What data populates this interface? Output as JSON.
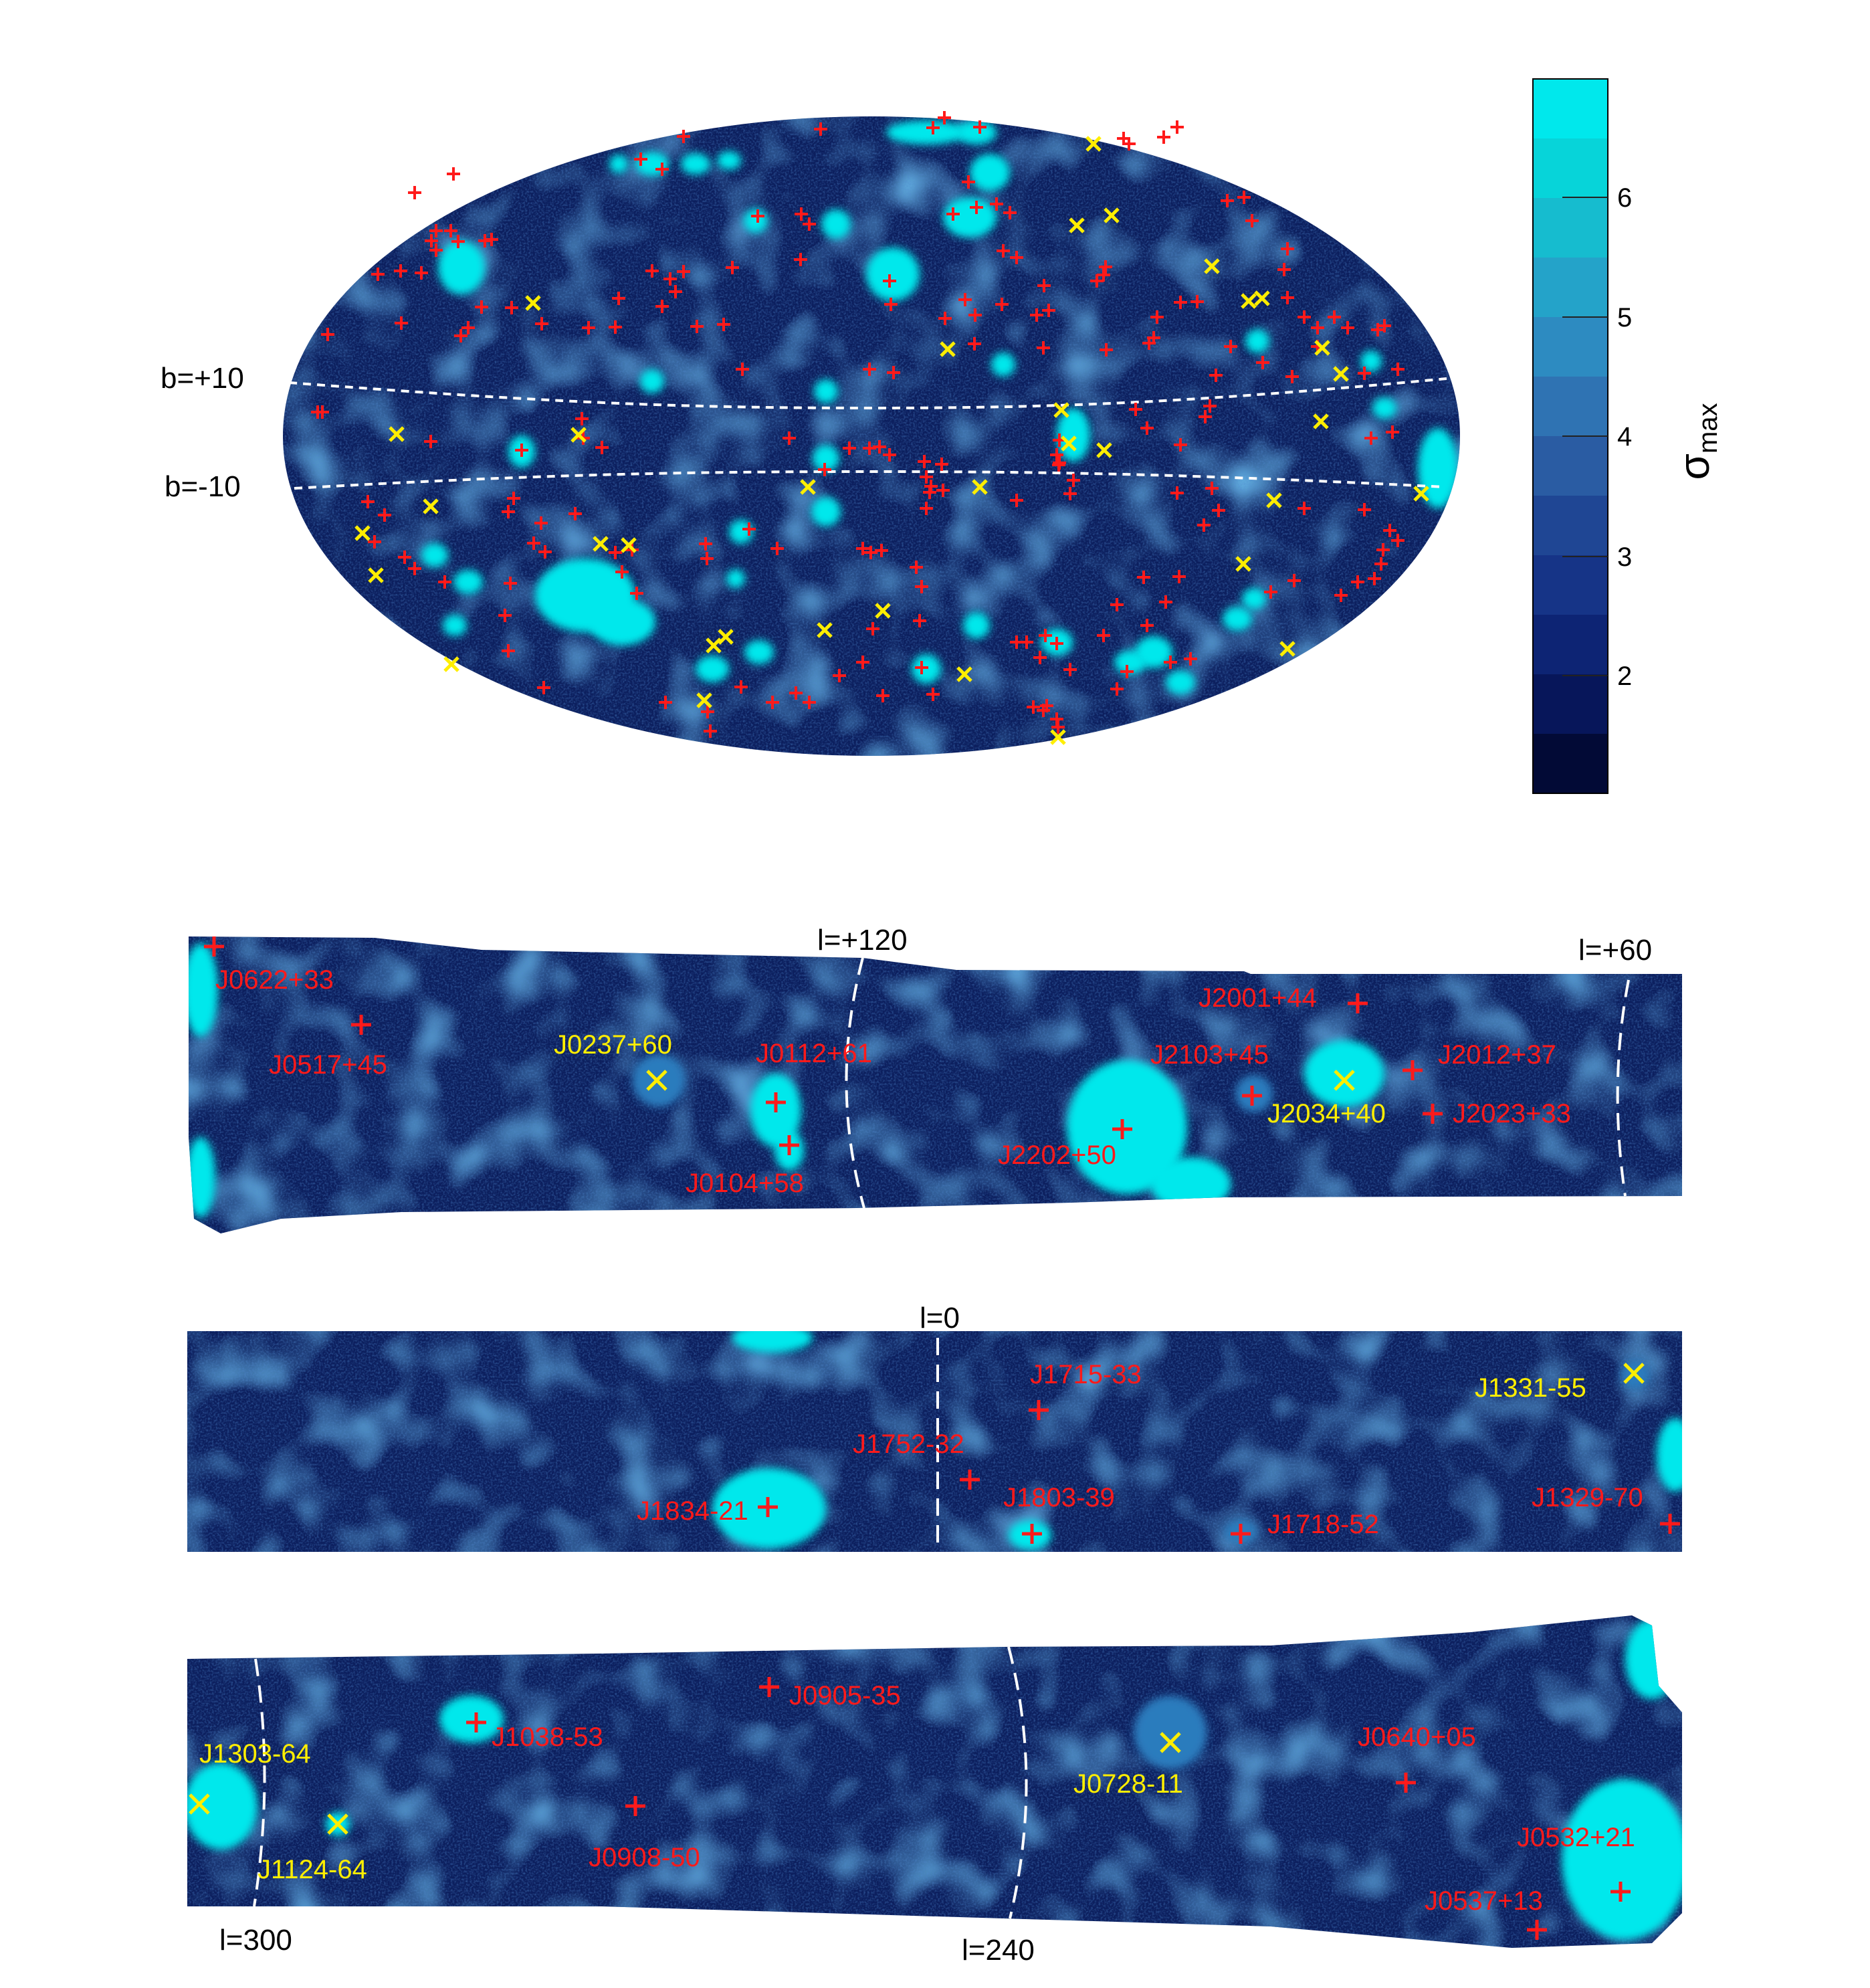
{
  "colors": {
    "background": "#0c1f5e",
    "hot": "#00e8ec",
    "mid": "#1d6fb0",
    "pulsar_red": "#ff1a1a",
    "pulsar_yellow": "#ffee00",
    "grid": "#ffffff",
    "colorbar": [
      "#020a36",
      "#07165a",
      "#0d2474",
      "#163487",
      "#1f4694",
      "#2a5ca3",
      "#2f73b3",
      "#2d8bc1",
      "#24a3c9",
      "#16bccf",
      "#07d4d9",
      "#00e8ec"
    ]
  },
  "allsky": {
    "projection": "hammer-aitoff",
    "lat_labels": [
      {
        "text": "b=+10"
      },
      {
        "text": "b=-10"
      }
    ],
    "colorbar": {
      "ticks": [
        "2",
        "3",
        "4",
        "5",
        "6"
      ],
      "label_main": "σ",
      "label_sub": "max"
    }
  },
  "strips": [
    {
      "id": "north",
      "lon_labels": [
        {
          "text": "l=+120"
        },
        {
          "text": "l=+60"
        }
      ],
      "sources": [
        {
          "name": "J0622+33",
          "marker": "plus",
          "color": "red"
        },
        {
          "name": "J0517+45",
          "marker": "plus",
          "color": "red"
        },
        {
          "name": "J0237+60",
          "marker": "cross",
          "color": "yellow"
        },
        {
          "name": "J0112+61",
          "marker": "plus",
          "color": "red"
        },
        {
          "name": "J0104+58",
          "marker": "plus",
          "color": "red"
        },
        {
          "name": "J2202+50",
          "marker": "plus",
          "color": "red"
        },
        {
          "name": "J2001+44",
          "marker": "plus",
          "color": "red"
        },
        {
          "name": "J2103+45",
          "marker": "plus",
          "color": "red"
        },
        {
          "name": "J2034+40",
          "marker": "cross",
          "color": "yellow"
        },
        {
          "name": "J2012+37",
          "marker": "plus",
          "color": "red"
        },
        {
          "name": "J2023+33",
          "marker": "plus",
          "color": "red"
        }
      ]
    },
    {
      "id": "center",
      "lon_labels": [
        {
          "text": "l=0"
        }
      ],
      "sources": [
        {
          "name": "J1715-33",
          "marker": "plus",
          "color": "red"
        },
        {
          "name": "J1752-32",
          "marker": "plus",
          "color": "red"
        },
        {
          "name": "J1834-21",
          "marker": "plus",
          "color": "red"
        },
        {
          "name": "J1803-39",
          "marker": "plus",
          "color": "red"
        },
        {
          "name": "J1718-52",
          "marker": "plus",
          "color": "red"
        },
        {
          "name": "J1331-55",
          "marker": "cross",
          "color": "yellow"
        },
        {
          "name": "J1329-70",
          "marker": "plus",
          "color": "red"
        }
      ]
    },
    {
      "id": "south",
      "lon_labels": [
        {
          "text": "l=300"
        },
        {
          "text": "l=240"
        }
      ],
      "sources": [
        {
          "name": "J1303-64",
          "marker": "cross",
          "color": "yellow"
        },
        {
          "name": "J1124-64",
          "marker": "cross",
          "color": "yellow"
        },
        {
          "name": "J1038-53",
          "marker": "plus",
          "color": "red"
        },
        {
          "name": "J0905-35",
          "marker": "plus",
          "color": "red"
        },
        {
          "name": "J0908-50",
          "marker": "plus",
          "color": "red"
        },
        {
          "name": "J0728-11",
          "marker": "cross",
          "color": "yellow"
        },
        {
          "name": "J0640+05",
          "marker": "plus",
          "color": "red"
        },
        {
          "name": "J0532+21",
          "marker": "plus",
          "color": "red"
        },
        {
          "name": "J0537+13",
          "marker": "plus",
          "color": "red"
        }
      ]
    }
  ]
}
